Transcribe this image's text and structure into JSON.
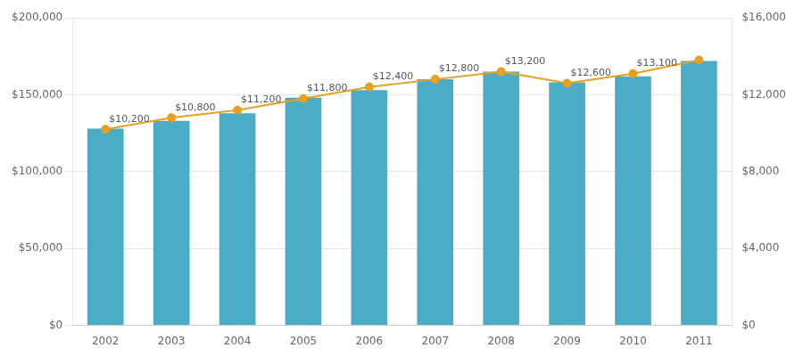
{
  "chart_data": {
    "type": "bar",
    "categories": [
      "2002",
      "2003",
      "2004",
      "2005",
      "2006",
      "2007",
      "2008",
      "2009",
      "2010",
      "2011"
    ],
    "series": [
      {
        "type": "bar",
        "color": "#4BACC6",
        "values": [
          128000,
          133000,
          138000,
          148000,
          153000,
          160000,
          165000,
          158000,
          162000,
          172000
        ]
      },
      {
        "type": "line",
        "color": "#E8A020",
        "axis": "y2",
        "marker": "circle",
        "data_labels": true,
        "values": [
          10200,
          10800,
          11200,
          11800,
          12400,
          12800,
          13200,
          12600,
          13100,
          13800
        ],
        "value_labels": [
          "$10,200",
          "$10,800",
          "$11,200",
          "$11,800",
          "$12,400",
          "$12,800",
          "$13,200",
          "$12,600",
          "$13,100",
          null
        ]
      }
    ],
    "ylim": [
      0,
      200000
    ],
    "yticks": [
      {
        "value": 0,
        "label": "$0"
      },
      {
        "value": 50000,
        "label": "$50,000"
      },
      {
        "value": 100000,
        "label": "$100,000"
      },
      {
        "value": 150000,
        "label": "$150,000"
      },
      {
        "value": 200000,
        "label": "$200,000"
      }
    ],
    "y2lim": [
      0,
      16000
    ],
    "y2ticks": [
      {
        "value": 0,
        "label": "$0"
      },
      {
        "value": 4000,
        "label": "$4,000"
      },
      {
        "value": 8000,
        "label": "$8,000"
      },
      {
        "value": 12000,
        "label": "$12,000"
      },
      {
        "value": 16000,
        "label": "$16,000"
      }
    ],
    "grid": true
  }
}
